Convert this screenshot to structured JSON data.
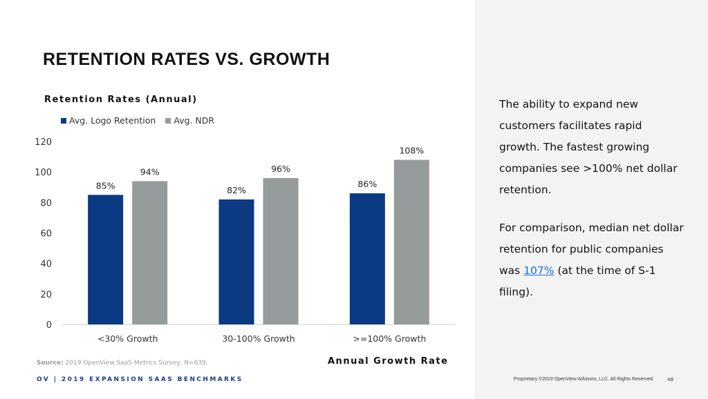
{
  "title": "RETENTION RATES VS. GROWTH",
  "side": {
    "p1": "The ability to expand new customers facilitates rapid growth. The fastest growing companies see >100% net dollar retention.",
    "p2_before": "For comparison, median net dollar retention for public companies was ",
    "p2_link": "107%",
    "p2_after": " (at the time of S-1 filing)."
  },
  "source_label": "Source:",
  "source_text": " 2019 OpenView SaaS Metrics Survey, N=639.",
  "footer": "OV | 2019 EXPANSION SAAS BENCHMARKS",
  "copyright": "Proprietary ©2019 OpenView Advisors, LLC. All Rights Reserved",
  "page": "48",
  "chart_data": {
    "type": "bar",
    "title": "Retention Rates (Annual)",
    "xlabel": "Annual Growth Rate",
    "ylabel": "",
    "categories": [
      "<30% Growth",
      "30-100% Growth",
      ">=100% Growth"
    ],
    "series": [
      {
        "name": "Avg. Logo Retention",
        "values": [
          85,
          82,
          86
        ],
        "labels": [
          "85%",
          "82%",
          "86%"
        ],
        "color": "#0b3a82"
      },
      {
        "name": "Avg. NDR",
        "values": [
          94,
          96,
          108
        ],
        "labels": [
          "94%",
          "96%",
          "108%"
        ],
        "color": "#959c9b"
      }
    ],
    "ylim": [
      0,
      120
    ],
    "yticks": [
      0,
      20,
      40,
      60,
      80,
      100,
      120
    ],
    "grid": false,
    "legend": "top-left"
  }
}
